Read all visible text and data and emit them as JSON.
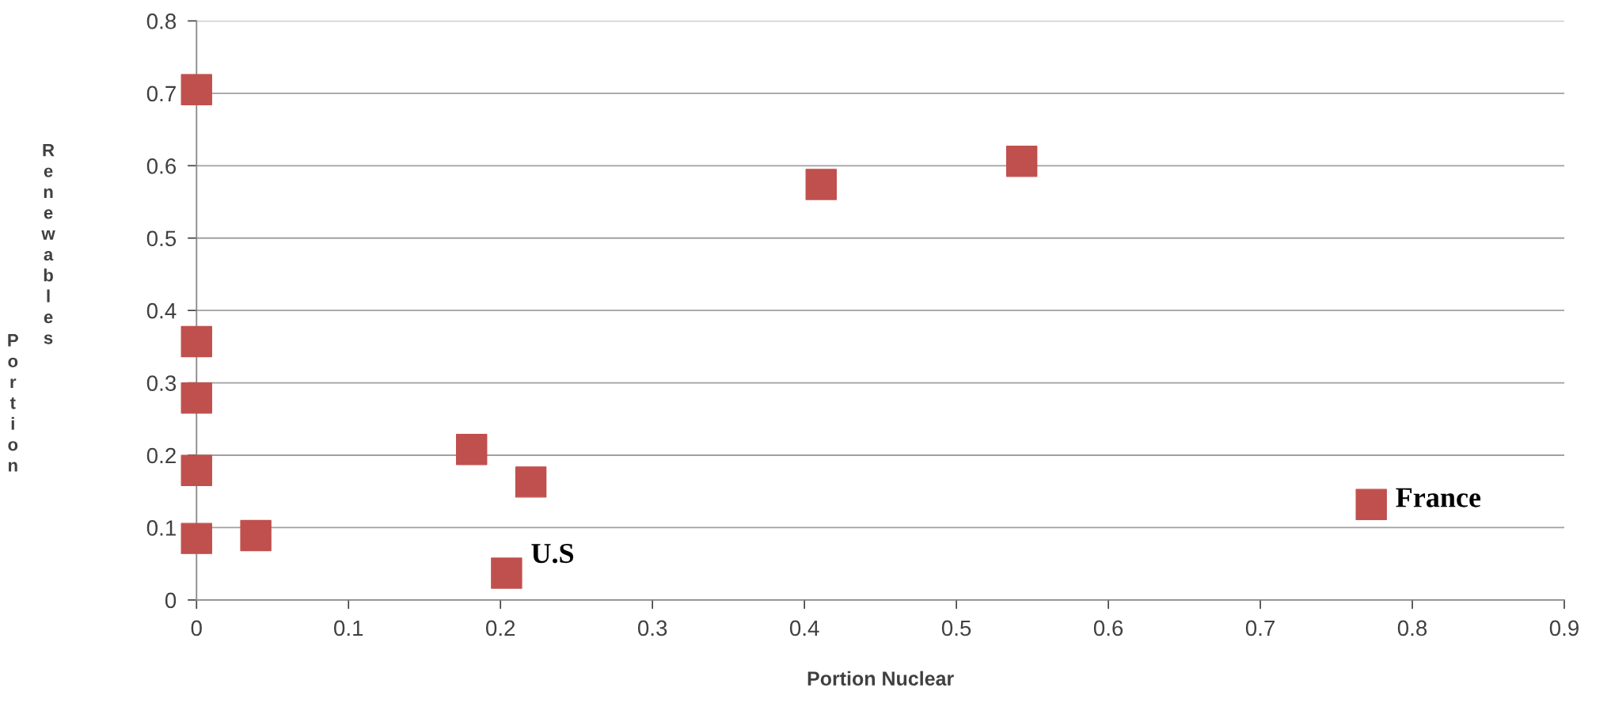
{
  "chart_data": {
    "type": "scatter",
    "xlabel": "Portion Nuclear",
    "ylabel": "Portion Renewables",
    "series": [
      {
        "color": "#c0504d",
        "x": [
          0,
          0.543,
          0.411,
          0,
          0,
          0,
          0,
          0.039,
          0.181,
          0.22,
          0.204,
          0.773
        ],
        "values": [
          0.705,
          0.606,
          0.574,
          0.357,
          0.279,
          0.179,
          0.085,
          0.089,
          0.208,
          0.163,
          0.037,
          0.132
        ]
      }
    ],
    "marker": "square",
    "xlim": [
      0,
      0.9
    ],
    "ylim": [
      0,
      0.8
    ],
    "xticks": [
      0,
      0.1,
      0.2,
      0.3,
      0.4,
      0.5,
      0.6,
      0.7,
      0.8,
      0.9
    ],
    "yticks": [
      0,
      0.1,
      0.2,
      0.3,
      0.4,
      0.5,
      0.6,
      0.7,
      0.8
    ],
    "grid": "y",
    "annotations": [
      {
        "text": "U.S",
        "x": 0.204,
        "y": 0.037
      },
      {
        "text": "France",
        "x": 0.773,
        "y": 0.132
      }
    ]
  }
}
